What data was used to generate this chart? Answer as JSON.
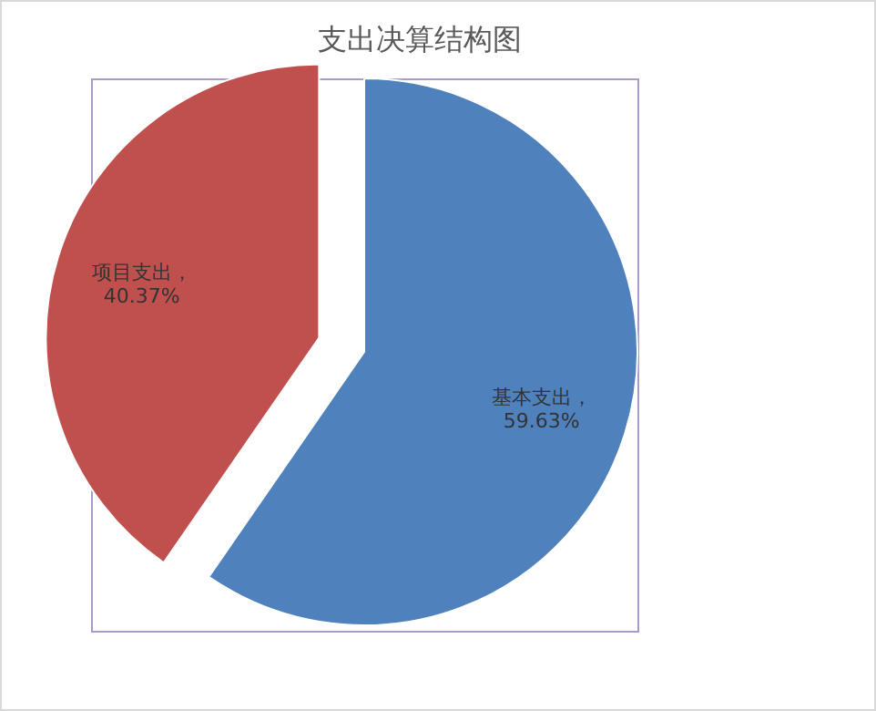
{
  "chart_data": {
    "type": "pie",
    "title": "支出决算结构图",
    "categories": [
      "基本支出",
      "项目支出"
    ],
    "values": [
      59.63,
      40.37
    ],
    "value_labels": [
      "，59.63%",
      "，40.37%"
    ],
    "colors": [
      "#4f81bd",
      "#c0504d"
    ]
  }
}
